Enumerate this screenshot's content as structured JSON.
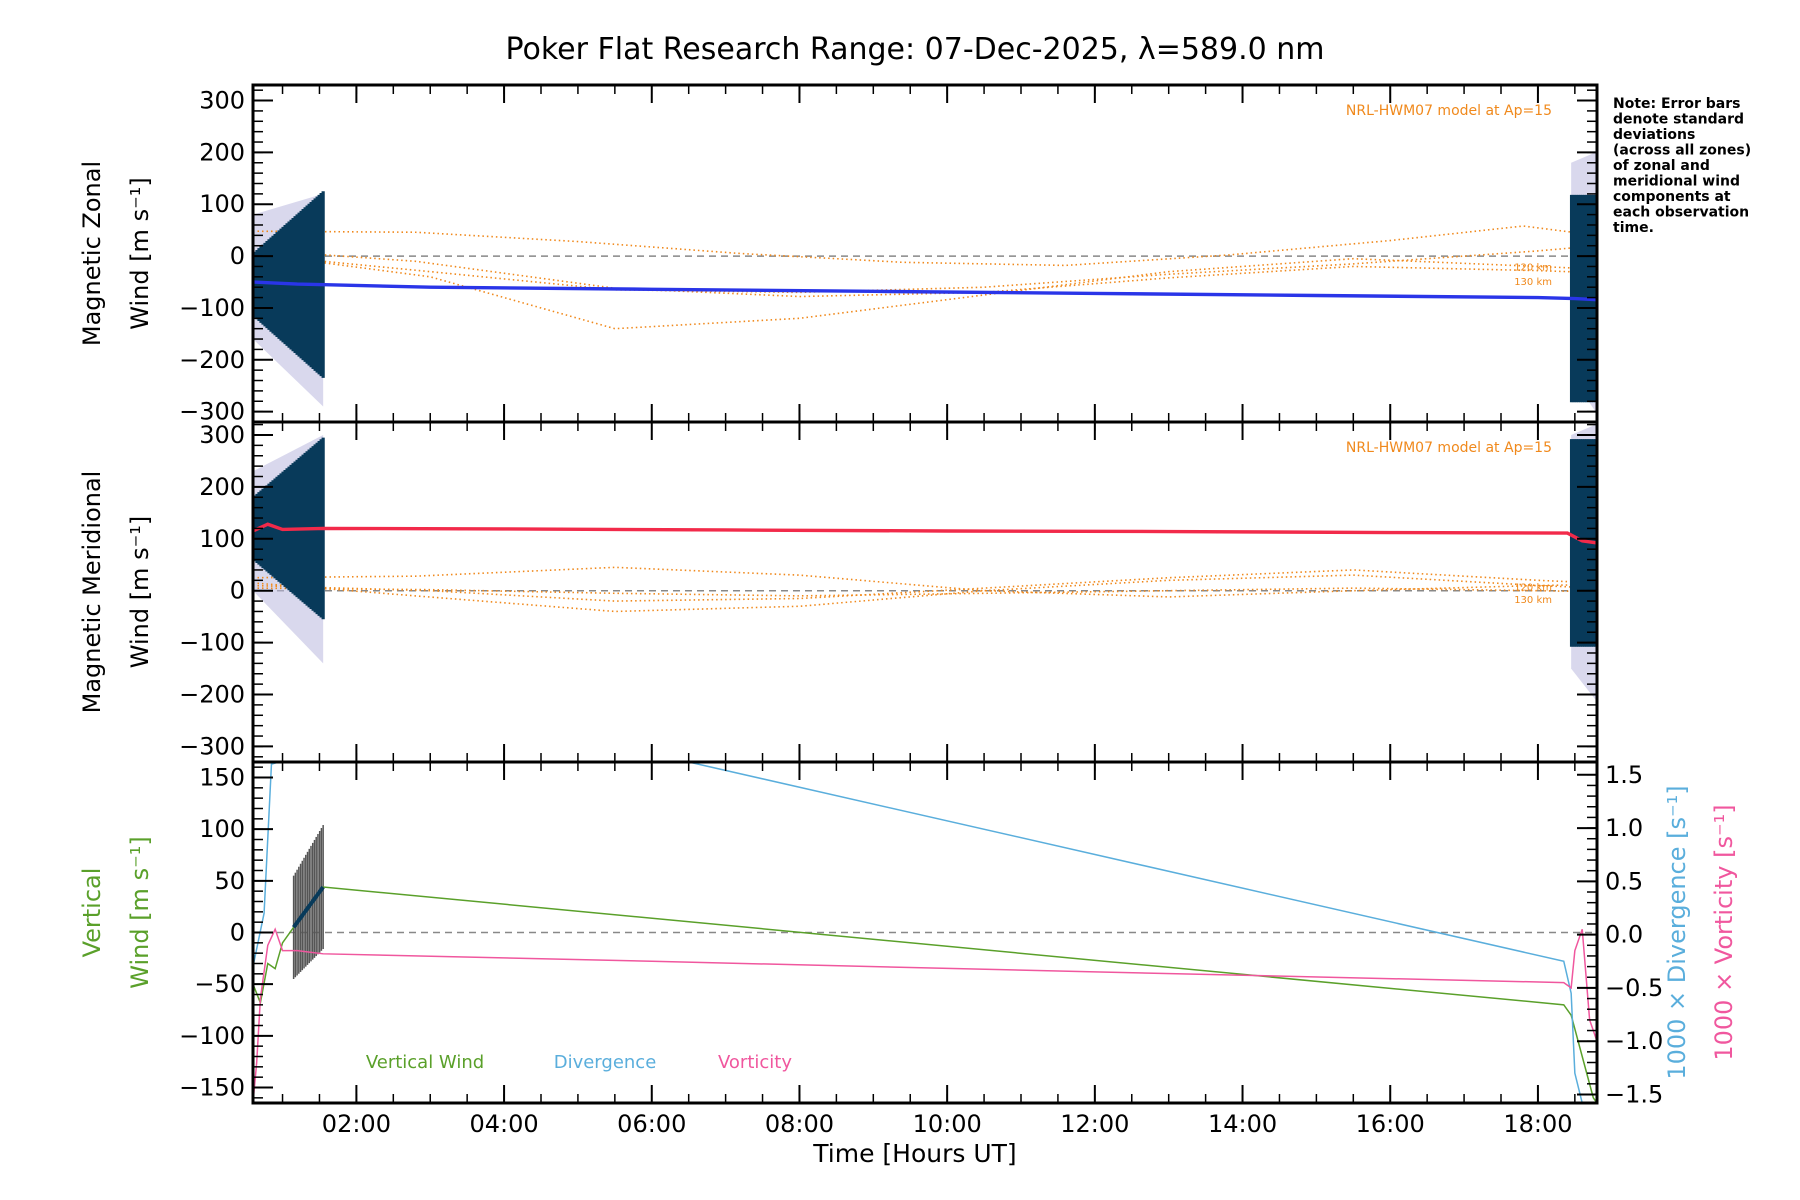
{
  "chart_data": {
    "type": "line",
    "title": "Poker Flat Research Range: 07-Dec-2025, λ=589.0 nm",
    "xlabel": "Time [Hours UT]",
    "xlim": [
      0.6,
      18.8
    ],
    "x_ticks": [
      2,
      4,
      6,
      8,
      10,
      12,
      14,
      16,
      18
    ],
    "x_tick_labels": [
      "02:00",
      "04:00",
      "06:00",
      "08:00",
      "10:00",
      "12:00",
      "14:00",
      "16:00",
      "18:00"
    ],
    "note": [
      "Note: Error bars",
      "denote standard",
      "deviations",
      "(across all zones)",
      "of zonal and",
      "meridional wind",
      "components at",
      "each observation",
      "time."
    ],
    "colors": {
      "zonal": "#2a35e8",
      "meridional": "#f22a4a",
      "model": "#f0891c",
      "error": "#083a5a",
      "zones": "#b9b8df",
      "vertical": "#5aa02a",
      "divergence": "#5aaedc",
      "vorticity": "#f0579e",
      "zero": "#888888"
    },
    "panels": [
      {
        "name": "zonal",
        "ylabel_line1": "Magnetic Zonal",
        "ylabel_line2": "Wind [m s⁻¹]",
        "ylim": [
          -320,
          330
        ],
        "y_ticks": [
          300,
          200,
          100,
          0,
          -100,
          -200,
          -300
        ],
        "y_tick_labels": [
          "300",
          "200",
          "100",
          "0",
          "−100",
          "−200",
          "−300"
        ],
        "model_label": "NRL-HWM07 model at Ap=15",
        "km_labels": [
          "120 km",
          "130 km"
        ],
        "series": [
          {
            "name": "Magnetic Zonal Wind",
            "x": [
              0.6,
              0.9,
              1.2,
              1.5,
              3,
              6,
              9,
              12,
              15,
              18,
              18.5,
              18.8
            ],
            "y": [
              -50,
              -52,
              -54,
              -55,
              -60,
              -64,
              -68,
              -72,
              -76,
              -80,
              -82,
              -84
            ]
          }
        ],
        "error_bars": {
          "x_start": 0.6,
          "x_end": 1.55,
          "count": 36,
          "center": -55,
          "half_width_start": 60,
          "half_width_end": 180
        },
        "error_bars_end": {
          "x_start": 18.45,
          "x_end": 18.78,
          "count": 14,
          "center": -82,
          "half_width": 200
        },
        "zone_spread": {
          "x": [
            0.6,
            1.55
          ],
          "upper": [
            80,
            120
          ],
          "lower": [
            -160,
            -290
          ],
          "x_end": [
            18.45,
            18.78
          ],
          "upper_end": [
            180,
            200
          ],
          "lower_end": [
            -230,
            -300
          ]
        },
        "model_curves": [
          {
            "label": "",
            "x": [
              0.6,
              2.8,
              5,
              7.2,
              9.4,
              11.6,
              13.8,
              16,
              17.8,
              18.8
            ],
            "y": [
              48,
              46,
              28,
              5,
              -12,
              -18,
              2,
              30,
              58,
              40
            ]
          },
          {
            "label": "",
            "x": [
              0.6,
              2.8,
              5.5,
              8,
              10.5,
              13,
              15.5,
              18,
              18.8
            ],
            "y": [
              12,
              -10,
              -62,
              -78,
              -70,
              -42,
              -20,
              -28,
              -32
            ]
          },
          {
            "label": "120 km",
            "x": [
              0.6,
              3,
              5.5,
              8,
              10.5,
              13,
              15.5,
              18,
              18.8
            ],
            "y": [
              5,
              -40,
              -140,
              -120,
              -75,
              -30,
              -5,
              -20,
              -25
            ]
          },
          {
            "label": "130 km",
            "x": [
              0.6,
              3,
              5.5,
              8,
              10.5,
              13,
              15.5,
              18,
              18.8
            ],
            "y": [
              3,
              -30,
              -65,
              -70,
              -60,
              -35,
              -15,
              10,
              20
            ]
          }
        ]
      },
      {
        "name": "meridional",
        "ylabel_line1": "Magnetic Meridional",
        "ylabel_line2": "Wind [m s⁻¹]",
        "ylim": [
          -330,
          325
        ],
        "y_ticks": [
          300,
          200,
          100,
          0,
          -100,
          -200,
          -300
        ],
        "y_tick_labels": [
          "300",
          "200",
          "100",
          "0",
          "−100",
          "−200",
          "−300"
        ],
        "model_label": "NRL-HWM07 model at Ap=15",
        "km_labels": [
          "120 km",
          "130 km"
        ],
        "series": [
          {
            "name": "Magnetic Meridional Wind",
            "x": [
              0.6,
              0.8,
              1.0,
              1.55,
              4,
              7,
              10,
              13,
              16,
              18.4,
              18.6,
              18.8
            ],
            "y": [
              115,
              128,
              118,
              120,
              119,
              117,
              115,
              114,
              112,
              111,
              96,
              92
            ]
          }
        ],
        "error_bars": {
          "x_start": 0.6,
          "x_end": 1.55,
          "count": 36,
          "center": 120,
          "half_width_start": 60,
          "half_width_end": 175
        },
        "error_bars_end": {
          "x_start": 18.45,
          "x_end": 18.78,
          "count": 14,
          "center": 92,
          "half_width": 200
        },
        "zone_spread": {
          "x": [
            0.6,
            1.55
          ],
          "upper": [
            230,
            300
          ],
          "lower": [
            0,
            -140
          ],
          "x_end": [
            18.45,
            18.78
          ],
          "upper_end": [
            300,
            320
          ],
          "lower_end": [
            -150,
            -210
          ]
        },
        "model_curves": [
          {
            "label": "",
            "x": [
              0.6,
              2.8,
              5.5,
              8,
              10.5,
              13,
              15.5,
              18,
              18.8
            ],
            "y": [
              25,
              28,
              45,
              30,
              0,
              -12,
              0,
              10,
              12
            ]
          },
          {
            "label": "",
            "x": [
              0.6,
              2.8,
              5.5,
              8,
              10.5,
              13,
              15.5,
              18,
              18.8
            ],
            "y": [
              15,
              -10,
              -40,
              -30,
              0,
              20,
              30,
              10,
              5
            ]
          },
          {
            "label": "120 km",
            "x": [
              0.6,
              3,
              5.5,
              8,
              10.5,
              13,
              15.5,
              18,
              18.8
            ],
            "y": [
              10,
              0,
              -20,
              -15,
              5,
              25,
              40,
              20,
              15
            ]
          },
          {
            "label": "130 km",
            "x": [
              0.6,
              3,
              5.5,
              8,
              10.5,
              13,
              15.5,
              18,
              18.8
            ],
            "y": [
              5,
              2,
              -5,
              -10,
              -5,
              0,
              5,
              0,
              -2
            ]
          }
        ]
      },
      {
        "name": "vertical",
        "ylabel_line1": "Vertical",
        "ylabel_line2": "Wind [m s⁻¹]",
        "ylim": [
          -165,
          165
        ],
        "y_ticks": [
          150,
          100,
          50,
          0,
          -50,
          -100,
          -150
        ],
        "y_tick_labels": [
          "150",
          "100",
          "50",
          "0",
          "−50",
          "−100",
          "−150"
        ],
        "y2lim": [
          -1.58,
          1.62
        ],
        "y2_ticks": [
          1.5,
          1.0,
          0.5,
          0.0,
          -0.5,
          -1.0,
          -1.5
        ],
        "y2_tick_labels": [
          "1.5",
          "1.0",
          "0.5",
          "0.0",
          "−0.5",
          "−1.0",
          "−1.5"
        ],
        "y2_label_divergence": "1000 × Divergence [s⁻¹]",
        "y2_label_vorticity": "1000 × Vorticity [s⁻¹]",
        "series": [
          {
            "name": "Vertical Wind",
            "axis": "left",
            "x": [
              0.6,
              0.7,
              0.8,
              0.9,
              1.0,
              1.2,
              1.4,
              1.55,
              18.35,
              18.45,
              18.6,
              18.75,
              18.8
            ],
            "y": [
              -50,
              -68,
              -30,
              -35,
              -10,
              10,
              30,
              44,
              -70,
              -80,
              -120,
              -160,
              -165
            ]
          },
          {
            "name": "Divergence",
            "axis": "right",
            "x": [
              0.6,
              0.75,
              0.85,
              0.95,
              1.1,
              1.3,
              6.5,
              18.35,
              18.45,
              18.5,
              18.6,
              18.8
            ],
            "y": [
              -0.3,
              0.2,
              1.6,
              1.62,
              1.62,
              1.62,
              1.62,
              -0.25,
              -0.55,
              -1.3,
              -1.58,
              -1.58
            ]
          },
          {
            "name": "Vorticity",
            "axis": "right",
            "x": [
              0.6,
              0.65,
              0.7,
              0.8,
              0.9,
              1.0,
              1.2,
              1.55,
              6,
              12,
              18.35,
              18.45,
              18.5,
              18.6,
              18.7,
              18.8
            ],
            "y": [
              -1.58,
              -1.2,
              -0.6,
              -0.1,
              0.05,
              -0.15,
              -0.15,
              -0.18,
              -0.25,
              -0.35,
              -0.45,
              -0.5,
              -0.15,
              0.05,
              -0.8,
              -1.0
            ]
          }
        ],
        "error_bars": {
          "x_start": 1.15,
          "x_end": 1.55,
          "count": 18,
          "center_start": 5,
          "center_end": 44,
          "half_width_start": 50,
          "half_width_end": 60
        },
        "legend": [
          "Vertical Wind",
          "Divergence",
          "Vorticity"
        ]
      }
    ]
  }
}
